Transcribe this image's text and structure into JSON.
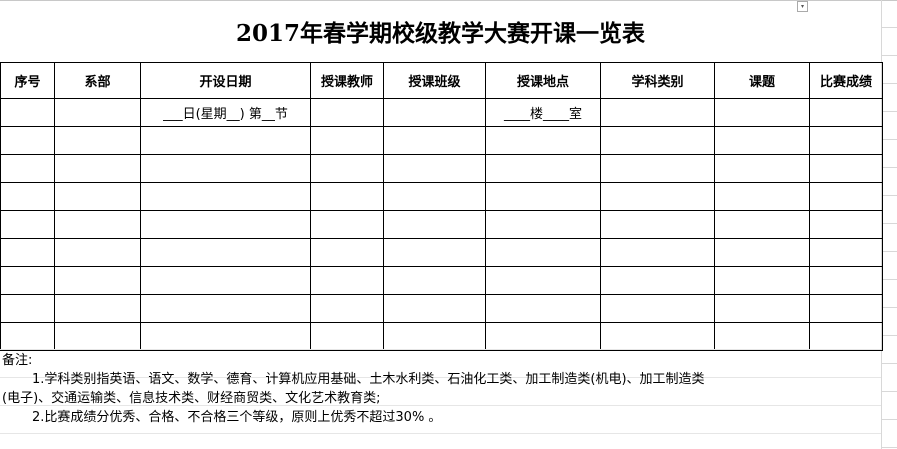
{
  "title": "2017年春学期校级教学大赛开课一览表",
  "headers": [
    "序号",
    "系部",
    "开设日期",
    "授课教师",
    "授课班级",
    "授课地点",
    "学科类别",
    "课题",
    "比赛成绩"
  ],
  "first_row": {
    "date": "___日(星期__) 第__节",
    "location": "____楼____室"
  },
  "notes": {
    "label": "备注:",
    "line1": "1.学科类别指英语、语文、数学、德育、计算机应用基础、土木水利类、石油化工类、加工制造类(机电)、加工制造类",
    "line1b": "(电子)、交通运输类、信息技术类、财经商贸类、文化艺术教育类;",
    "line2": "2.比赛成绩分优秀、合格、不合格三个等级，原则上优秀不超过30% 。"
  }
}
